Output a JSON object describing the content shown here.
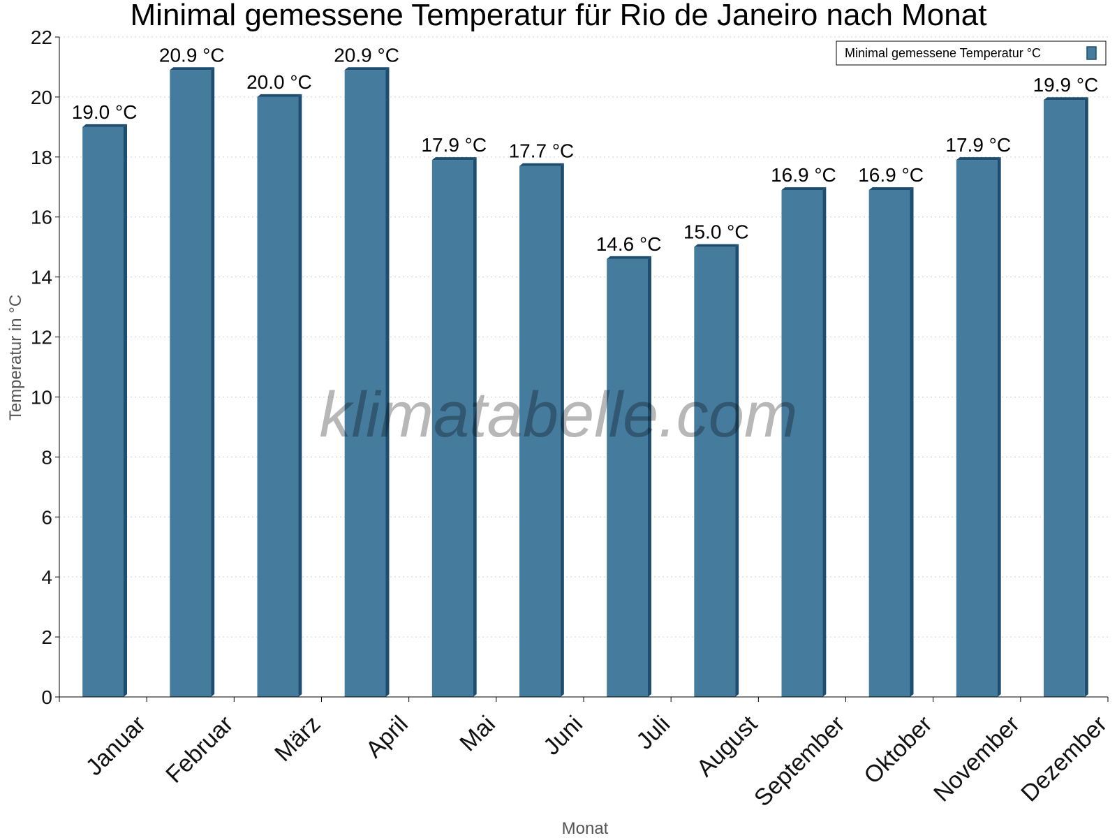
{
  "watermark": "klimatabelle.com",
  "colors": {
    "bar": "#457b9d",
    "bar_side": "#1d4e6f",
    "grid": "#cfcfcf",
    "axis": "#000000"
  },
  "chart_data": {
    "type": "bar",
    "title": "Minimal gemessene Temperatur für Rio de Janeiro nach Monat",
    "xlabel": "Monat",
    "ylabel": "Temperatur in °C",
    "categories": [
      "Januar",
      "Februar",
      "März",
      "April",
      "Mai",
      "Juni",
      "Juli",
      "August",
      "September",
      "Oktober",
      "November",
      "Dezember"
    ],
    "series": [
      {
        "name": "Minimal gemessene Temperatur °C",
        "values": [
          19.0,
          20.9,
          20.0,
          20.9,
          17.9,
          17.7,
          14.6,
          15.0,
          16.9,
          16.9,
          17.9,
          19.9
        ]
      }
    ],
    "value_labels": [
      "19.0 °C",
      "20.9 °C",
      "20.0 °C",
      "20.9 °C",
      "17.9 °C",
      "17.7 °C",
      "14.6 °C",
      "15.0 °C",
      "16.9 °C",
      "16.9 °C",
      "17.9 °C",
      "19.9 °C"
    ],
    "yticks": [
      "0",
      "2",
      "4",
      "6",
      "8",
      "10",
      "12",
      "14",
      "16",
      "18",
      "20",
      "22"
    ],
    "ylim": [
      0,
      22
    ],
    "grid": true,
    "legend_position": "top-right"
  }
}
